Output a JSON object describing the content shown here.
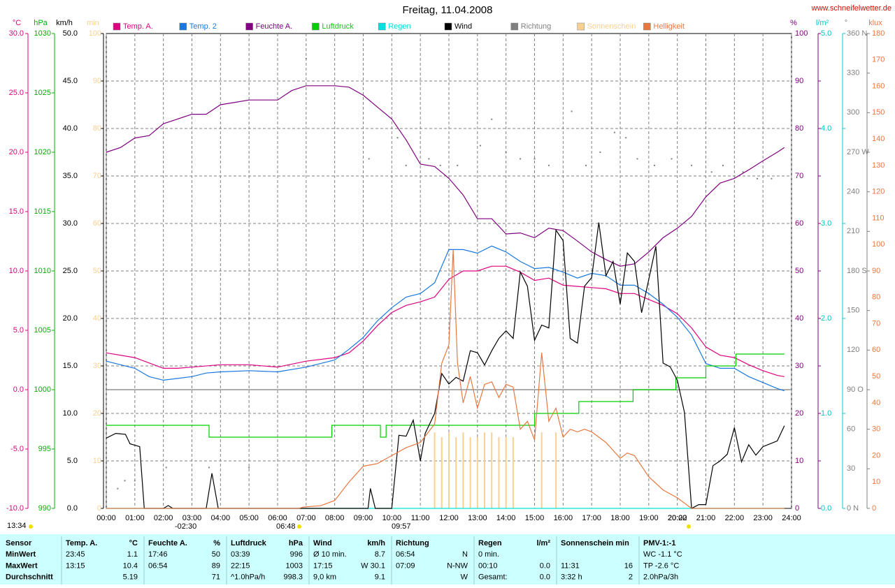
{
  "chart_data": {
    "type": "line",
    "title": "Freitag, 11.04.2008",
    "source": "www.schneifelwetter.de",
    "grid": true,
    "xlim": [
      0,
      24
    ],
    "xticks": [
      {
        "value": 0,
        "label": "00:00"
      },
      {
        "value": 1,
        "label": "01:00"
      },
      {
        "value": 2,
        "label": "02:00"
      },
      {
        "value": 3,
        "label": "03:00"
      },
      {
        "value": 4,
        "label": "04:00"
      },
      {
        "value": 5,
        "label": "05:00"
      },
      {
        "value": 6,
        "label": "06:00"
      },
      {
        "value": 7,
        "label": "07:00"
      },
      {
        "value": 8,
        "label": "08:00"
      },
      {
        "value": 9,
        "label": "09:00"
      },
      {
        "value": 10,
        "label": "10:00"
      },
      {
        "value": 11,
        "label": "11:00"
      },
      {
        "value": 12,
        "label": "12:00"
      },
      {
        "value": 13,
        "label": "13:00"
      },
      {
        "value": 14,
        "label": "14:00"
      },
      {
        "value": 15,
        "label": "15:00"
      },
      {
        "value": 16,
        "label": "16:00"
      },
      {
        "value": 17,
        "label": "17:00"
      },
      {
        "value": 18,
        "label": "18:00"
      },
      {
        "value": 19,
        "label": "19:00"
      },
      {
        "value": 20,
        "label": "20:00"
      },
      {
        "value": 21,
        "label": "21:00"
      },
      {
        "value": 22,
        "label": "22:00"
      },
      {
        "value": 23,
        "label": "23:00"
      },
      {
        "value": 24,
        "label": "24:00"
      }
    ],
    "axes": [
      {
        "id": "temp",
        "label": "°C",
        "color": "#e0007f",
        "lim": [
          -10,
          30
        ],
        "ticks": [
          {
            "value": -10,
            "label": "-10.0"
          },
          {
            "value": -5,
            "label": "-5.0"
          },
          {
            "value": 0,
            "label": "0.0"
          },
          {
            "value": 5,
            "label": "5.0"
          },
          {
            "value": 10,
            "label": "10.0"
          },
          {
            "value": 15,
            "label": "15.0"
          },
          {
            "value": 20,
            "label": "20.0"
          },
          {
            "value": 25,
            "label": "25.0"
          },
          {
            "value": 30,
            "label": "30.0"
          }
        ]
      },
      {
        "id": "hpa",
        "label": "hPa",
        "color": "#00b000",
        "lim": [
          990,
          1030
        ],
        "ticks": [
          990,
          995,
          1000,
          1005,
          1010,
          1015,
          1020,
          1025,
          1030
        ]
      },
      {
        "id": "kmh",
        "label": "km/h",
        "color": "#000000",
        "lim": [
          0,
          50
        ],
        "ticks": [
          {
            "value": 0,
            "label": "0.0"
          },
          {
            "value": 5,
            "label": "5.0"
          },
          {
            "value": 10,
            "label": "10.0"
          },
          {
            "value": 15,
            "label": "15.0"
          },
          {
            "value": 20,
            "label": "20.0"
          },
          {
            "value": 25,
            "label": "25.0"
          },
          {
            "value": 30,
            "label": "30.0"
          },
          {
            "value": 35,
            "label": "35.0"
          },
          {
            "value": 40,
            "label": "40.0"
          },
          {
            "value": 45,
            "label": "45.0"
          },
          {
            "value": 50,
            "label": "50.0"
          }
        ]
      },
      {
        "id": "min",
        "label": "min",
        "color": "#f8d090",
        "lim": [
          0,
          100
        ],
        "ticks": [
          0,
          10,
          20,
          30,
          40,
          50,
          60,
          70,
          80,
          90,
          100
        ]
      },
      {
        "id": "pct",
        "label": "%",
        "color": "#800080",
        "lim": [
          0,
          100
        ],
        "ticks": [
          0,
          10,
          20,
          30,
          40,
          50,
          60,
          70,
          80,
          90,
          100
        ],
        "grid": true
      },
      {
        "id": "rain",
        "label": "l/m²",
        "color": "#00c8c8",
        "lim": [
          0,
          5
        ],
        "ticks": [
          {
            "value": 0,
            "label": "0.0"
          },
          {
            "value": 1,
            "label": "1.0"
          },
          {
            "value": 2,
            "label": "2.0"
          },
          {
            "value": 3,
            "label": "3.0"
          },
          {
            "value": 4,
            "label": "4.0"
          },
          {
            "value": 5,
            "label": "5.0"
          }
        ]
      },
      {
        "id": "deg",
        "label": "°",
        "color": "#808080",
        "lim": [
          0,
          360
        ],
        "ticks": [
          {
            "value": 0,
            "label": "0 N"
          },
          30,
          60,
          {
            "value": 90,
            "label": "90 O"
          },
          120,
          150,
          {
            "value": 180,
            "label": "180 S"
          },
          210,
          240,
          {
            "value": 270,
            "label": "270 W"
          },
          300,
          330,
          {
            "value": 360,
            "label": "360 N"
          }
        ]
      },
      {
        "id": "klux",
        "label": "klux",
        "color": "#e87840",
        "lim": [
          0,
          180
        ],
        "ticks": [
          0,
          10,
          20,
          30,
          40,
          50,
          60,
          70,
          80,
          90,
          100,
          110,
          120,
          130,
          140,
          150,
          160,
          170,
          180
        ]
      }
    ],
    "series": [
      {
        "name": "Temp. A.",
        "color": "#e0007f",
        "kind": "line",
        "axis": "temp",
        "x": [
          0,
          1,
          2,
          2.5,
          3,
          4,
          5,
          6,
          7,
          8,
          8.5,
          9,
          9.5,
          10,
          10.5,
          11,
          11.5,
          12,
          12.5,
          13,
          13.5,
          14,
          14.5,
          15,
          15.5,
          16,
          16.5,
          17,
          17.5,
          18,
          18.5,
          19,
          19.5,
          20,
          20.5,
          21,
          21.5,
          22,
          22.5,
          23,
          23.5,
          23.75
        ],
        "values": [
          3.1,
          2.7,
          1.8,
          1.8,
          1.9,
          2.1,
          2.1,
          1.9,
          2.4,
          2.7,
          3.1,
          4.1,
          5.4,
          6.5,
          7.1,
          7.4,
          7.8,
          9.3,
          10.0,
          10.0,
          10.4,
          10.4,
          9.9,
          9.2,
          9.4,
          8.8,
          8.7,
          8.6,
          8.5,
          8.1,
          8.1,
          7.6,
          7.1,
          6.4,
          5.2,
          3.6,
          2.9,
          2.7,
          2.1,
          1.6,
          1.2,
          1.1
        ]
      },
      {
        "name": "Temp. 2",
        "color": "#1878e0",
        "kind": "line",
        "axis": "temp",
        "x": [
          0,
          1,
          1.5,
          2,
          3,
          3.5,
          4,
          5,
          6,
          7,
          8,
          8.5,
          9,
          9.5,
          10,
          10.5,
          11,
          11.5,
          12,
          12.5,
          13,
          13.5,
          14,
          14.5,
          15,
          15.5,
          16,
          16.5,
          17,
          17.5,
          18,
          18.5,
          19,
          19.5,
          20,
          20.5,
          21,
          21.5,
          22,
          22.5,
          23,
          23.5,
          23.75
        ],
        "values": [
          2.4,
          1.8,
          1.1,
          0.8,
          1.1,
          1.4,
          1.5,
          1.6,
          1.5,
          1.9,
          2.5,
          3.4,
          4.4,
          5.8,
          6.9,
          7.8,
          8.1,
          9.0,
          11.8,
          11.8,
          11.5,
          12.1,
          11.6,
          10.8,
          10.2,
          10.3,
          9.9,
          9.4,
          9.8,
          9.6,
          8.8,
          8.8,
          8.1,
          7.2,
          6.1,
          4.6,
          2.2,
          1.8,
          1.8,
          1.1,
          0.6,
          0.1,
          -0.1
        ]
      },
      {
        "name": "Feuchte A.",
        "color": "#800080",
        "kind": "line",
        "axis": "pct",
        "x": [
          0,
          0.5,
          1,
          1.5,
          2,
          2.5,
          3,
          3.5,
          4,
          4.5,
          5,
          6,
          6.5,
          7,
          8,
          8.5,
          9,
          9.5,
          10,
          10.5,
          11,
          11.5,
          12,
          12.5,
          13,
          13.5,
          14,
          14.5,
          15,
          15.5,
          16,
          16.5,
          17,
          17.5,
          18,
          18.5,
          19,
          19.5,
          20,
          20.5,
          21,
          21.5,
          22,
          22.5,
          23,
          23.5,
          23.75
        ],
        "values": [
          75,
          76,
          78,
          78.5,
          81,
          82,
          83,
          83,
          85,
          85.5,
          86,
          86,
          88,
          89,
          89,
          88.7,
          87,
          84.5,
          82,
          77.6,
          72.5,
          72,
          69.5,
          66,
          61,
          61,
          57.8,
          58,
          57,
          59,
          58.5,
          56.3,
          54,
          52.4,
          51,
          51.5,
          54,
          57,
          59,
          61.5,
          65.6,
          68.5,
          69.5,
          71.3,
          73.2,
          75,
          76
        ]
      },
      {
        "name": "Luftdruck",
        "color": "#00d000",
        "kind": "step",
        "axis": "hpa",
        "x": [
          0,
          3.6,
          7.9,
          9.6,
          9.8,
          15.0,
          16.55,
          18.45,
          19.95,
          21.0,
          22.05,
          23.75
        ],
        "values": [
          997,
          996,
          997,
          996,
          997,
          998,
          999,
          1000,
          1001,
          1002,
          1003,
          1003
        ]
      },
      {
        "name": "Regen",
        "color": "#00e0e0",
        "kind": "line",
        "axis": "rain",
        "x": [
          0,
          23.75
        ],
        "values": [
          0,
          0
        ]
      },
      {
        "name": "Wind",
        "color": "#000000",
        "kind": "line",
        "axis": "kmh",
        "x": [
          0,
          0.33,
          0.67,
          0.83,
          1.17,
          1.33,
          2.0,
          2.17,
          2.33,
          3.5,
          3.7,
          3.92,
          9.17,
          9.25,
          9.42,
          10.0,
          10.25,
          10.5,
          10.75,
          11.0,
          11.17,
          11.5,
          11.75,
          12,
          12.25,
          12.5,
          12.75,
          13,
          13.25,
          13.5,
          13.75,
          14,
          14.25,
          14.5,
          14.75,
          15,
          15.25,
          15.5,
          15.75,
          16,
          16.25,
          16.5,
          16.75,
          17,
          17.25,
          17.5,
          17.75,
          18,
          18.25,
          18.5,
          18.75,
          19,
          19.25,
          19.5,
          19.75,
          20,
          20.25,
          20.5,
          20.75,
          21,
          21.25,
          21.5,
          21.75,
          22,
          22.25,
          22.5,
          22.75,
          23,
          23.5,
          23.75
        ],
        "values": [
          7.4,
          7.9,
          7.8,
          6.8,
          6.5,
          0,
          0,
          0.3,
          0,
          0,
          3.7,
          0,
          0,
          2.1,
          0,
          0,
          7.7,
          7.6,
          9.3,
          5.0,
          7.9,
          10,
          14.2,
          13.1,
          13.8,
          13.4,
          16.6,
          16.4,
          15.1,
          16.6,
          17.9,
          18.7,
          17.9,
          24.9,
          23.4,
          17.7,
          19.3,
          19.0,
          29.3,
          28.2,
          17.9,
          17.4,
          23.4,
          24.3,
          30.1,
          24.5,
          26.0,
          21.5,
          26.9,
          26.0,
          20.6,
          24.1,
          27.6,
          15.3,
          14.9,
          13.5,
          10.1,
          0,
          0.4,
          0.4,
          4.5,
          5.0,
          5.7,
          8.5,
          4.9,
          6.7,
          5.6,
          6.5,
          7.1,
          8.7
        ]
      },
      {
        "name": "Richtung",
        "color": "#808080",
        "kind": "scatter",
        "axis": "deg",
        "x": [
          0.4,
          0.65,
          1.0,
          2.1,
          3.6,
          5.0,
          7.0,
          9.2,
          10.2,
          10.5,
          11.3,
          11.7,
          12.3,
          13.1,
          13.5,
          14.0,
          14.5,
          15.0,
          15.5,
          16.3,
          16.8,
          17.3,
          17.8,
          18.2,
          18.6,
          19.2,
          19.8,
          20.5,
          21.2,
          21.6,
          22.3,
          22.8,
          23.3
        ],
        "values": [
          15,
          21,
          21,
          31,
          31,
          31,
          341,
          265,
          281,
          260,
          265,
          260,
          260,
          275,
          295,
          270,
          265,
          265,
          260,
          301,
          260,
          270,
          285,
          281,
          265,
          260,
          265,
          260,
          255,
          260,
          255,
          250,
          250
        ]
      },
      {
        "name": "Sonnenschein",
        "color": "#f8d090",
        "kind": "bar",
        "axis": "min",
        "x": [
          11.5,
          11.75,
          12,
          12.25,
          12.5,
          12.75,
          13,
          13.25,
          13.5,
          13.75,
          14,
          14.25,
          15.25,
          15.75
        ],
        "values": [
          16,
          15,
          16,
          15,
          16,
          15,
          15,
          16,
          16,
          15,
          15,
          15,
          16,
          16
        ]
      },
      {
        "name": "Helligkeit",
        "color": "#e87840",
        "kind": "line",
        "axis": "klux",
        "x": [
          0,
          6.75,
          6.9,
          7.5,
          8,
          8.5,
          9,
          9.5,
          10,
          10.5,
          11,
          11.5,
          11.75,
          12,
          12.15,
          12.3,
          12.5,
          12.75,
          13,
          13.25,
          13.5,
          13.75,
          14,
          14.25,
          14.5,
          14.75,
          15,
          15.25,
          15.5,
          15.75,
          16,
          16.25,
          16.5,
          16.75,
          17,
          17.5,
          18,
          18.25,
          18.5,
          19,
          19.5,
          20,
          20.5,
          23.75
        ],
        "values": [
          0,
          0,
          0.5,
          1,
          3,
          10,
          16,
          17,
          20,
          23,
          25,
          32,
          55,
          62,
          98,
          55,
          40,
          50,
          38,
          47,
          48,
          42,
          47,
          46,
          30,
          33,
          26,
          59,
          33,
          38,
          27,
          30,
          29,
          30,
          29,
          25,
          19,
          21,
          20,
          12,
          7,
          4,
          0,
          0
        ]
      }
    ],
    "annotations": [
      "13:34",
      "-02:30",
      "06:48",
      "09:57",
      "20:22"
    ]
  },
  "table": {
    "rows": [
      [
        "Sensor",
        [
          "Temp. A.",
          "°C"
        ],
        [
          "Feuchte A.",
          "%"
        ],
        [
          "Luftdruck",
          "hPa"
        ],
        [
          "Wind",
          "km/h"
        ],
        [
          "Richtung",
          null
        ],
        [
          "Regen",
          "l/m²"
        ],
        [
          "Sonnenschein min",
          null
        ],
        [
          "PMV-1:-1",
          null
        ]
      ],
      [
        "MinWert",
        [
          "23:45",
          "1.1"
        ],
        [
          "17:46",
          "50"
        ],
        [
          "03:39",
          "996"
        ],
        [
          "Ø 10 min.",
          "8.7"
        ],
        [
          "06:54",
          "N"
        ],
        [
          "0 min.",
          null
        ],
        [
          null,
          null
        ],
        [
          "WC -1.1 °C",
          null
        ]
      ],
      [
        "MaxWert",
        [
          "13:15",
          "10.4"
        ],
        [
          "06:54",
          "89"
        ],
        [
          "22:15",
          "1003"
        ],
        [
          "17:15",
          "W 30.1"
        ],
        [
          "07:09",
          "N-NW"
        ],
        [
          "00:10",
          "0.0"
        ],
        [
          "11:31",
          "16"
        ],
        [
          "TP -2.6 °C",
          null
        ]
      ],
      [
        "Durchschnitt",
        [
          null,
          "5.19"
        ],
        [
          null,
          "71"
        ],
        [
          "^1.0hPa/h",
          "998.3"
        ],
        [
          "9,0 km",
          "9.1"
        ],
        [
          null,
          "W"
        ],
        [
          "Gesamt:",
          "0.0"
        ],
        [
          "3:32 h",
          "2"
        ],
        [
          "2.0hPa/3h",
          null
        ]
      ]
    ]
  }
}
